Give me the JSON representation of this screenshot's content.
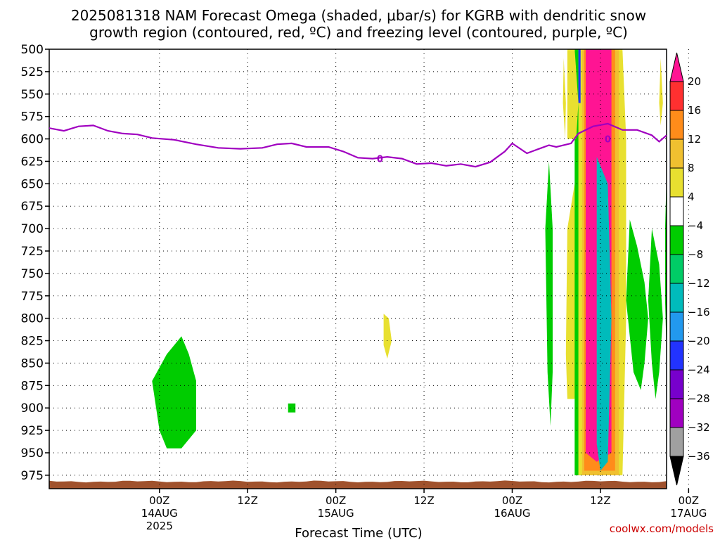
{
  "chart_data": {
    "type": "heatmap",
    "title_lines": [
      "2025081318 NAM Forecast Omega (shaded, μbar/s) for KGRB with dendritic snow",
      "growth region (contoured, red, ºC) and freezing level (contoured, purple, ºC)"
    ],
    "xlabel": "Forecast Time (UTC)",
    "credit": "coolwx.com/models",
    "x_hours_range": [
      -15,
      69
    ],
    "y_pressure_range": [
      500,
      990
    ],
    "y_ticks": [
      500,
      525,
      550,
      575,
      600,
      625,
      650,
      675,
      700,
      725,
      750,
      775,
      800,
      825,
      850,
      875,
      900,
      925,
      950,
      975
    ],
    "x_ticks": [
      {
        "hour": 0,
        "label": "00Z",
        "sub1": "14AUG",
        "sub2": "2025"
      },
      {
        "hour": 12,
        "label": "12Z",
        "sub1": "",
        "sub2": ""
      },
      {
        "hour": 24,
        "label": "00Z",
        "sub1": "15AUG",
        "sub2": ""
      },
      {
        "hour": 36,
        "label": "12Z",
        "sub1": "",
        "sub2": ""
      },
      {
        "hour": 48,
        "label": "00Z",
        "sub1": "16AUG",
        "sub2": ""
      },
      {
        "hour": 60,
        "label": "12Z",
        "sub1": "",
        "sub2": ""
      },
      {
        "hour": 72,
        "label": "00Z",
        "sub1": "17AUG",
        "sub2": ""
      }
    ],
    "colorbar": {
      "labels": [
        "20",
        "16",
        "12",
        "8",
        "4",
        "−4",
        "−8",
        "−12",
        "−16",
        "−20",
        "−24",
        "−28",
        "−32",
        "−36"
      ],
      "colors": [
        "#ff1493",
        "#ff3030",
        "#ff8c1a",
        "#f0c030",
        "#e8e030",
        "#ffffff",
        "#00cc00",
        "#00cc66",
        "#00bbbb",
        "#2299ee",
        "#2233ff",
        "#7700cc",
        "#a000c0",
        "#a0a0a0",
        "#000000"
      ]
    },
    "colors": {
      "freezing_line": "#a000c0",
      "terrain": "#a0522d"
    },
    "freezing_level_label": "0",
    "freezing_level": [
      [
        -15,
        588
      ],
      [
        -13,
        591
      ],
      [
        -11,
        586
      ],
      [
        -9,
        585
      ],
      [
        -7,
        591
      ],
      [
        -5,
        594
      ],
      [
        -3,
        595
      ],
      [
        -1,
        599
      ],
      [
        2,
        601
      ],
      [
        5,
        606
      ],
      [
        8,
        610
      ],
      [
        11,
        611
      ],
      [
        14,
        610
      ],
      [
        16,
        606
      ],
      [
        18,
        605
      ],
      [
        20,
        609
      ],
      [
        23,
        609
      ],
      [
        25,
        614
      ],
      [
        27,
        621
      ],
      [
        29,
        622
      ],
      [
        31,
        620
      ],
      [
        33,
        622
      ],
      [
        35,
        628
      ],
      [
        37,
        627
      ],
      [
        39,
        630
      ],
      [
        41,
        628
      ],
      [
        43,
        631
      ],
      [
        45,
        626
      ],
      [
        47,
        614
      ],
      [
        48,
        605
      ],
      [
        50,
        616
      ],
      [
        51,
        613
      ],
      [
        52,
        610
      ],
      [
        53,
        607
      ],
      [
        54,
        609
      ],
      [
        56,
        605
      ],
      [
        57,
        594
      ],
      [
        59,
        586
      ],
      [
        61,
        583
      ],
      [
        63,
        590
      ],
      [
        65,
        590
      ],
      [
        67,
        596
      ],
      [
        68,
        603
      ],
      [
        69,
        596
      ]
    ],
    "omega_regions": [
      {
        "color": "#00cc00",
        "pts": [
          [
            3,
            820
          ],
          [
            4,
            840
          ],
          [
            5,
            870
          ],
          [
            5,
            925
          ],
          [
            3,
            945
          ],
          [
            1,
            945
          ],
          [
            0,
            925
          ],
          [
            -1,
            870
          ],
          [
            1,
            840
          ]
        ]
      },
      {
        "color": "#00cc00",
        "pts": [
          [
            17.5,
            895
          ],
          [
            18.5,
            895
          ],
          [
            18.5,
            905
          ],
          [
            17.5,
            905
          ]
        ]
      },
      {
        "color": "#e8e030",
        "pts": [
          [
            30.5,
            795
          ],
          [
            31.2,
            800
          ],
          [
            31.6,
            825
          ],
          [
            31,
            845
          ],
          [
            30.5,
            830
          ]
        ]
      },
      {
        "color": "#e8e030",
        "pts": [
          [
            55,
            510
          ],
          [
            55.3,
            560
          ],
          [
            55.2,
            600
          ],
          [
            54.9,
            560
          ]
        ]
      },
      {
        "color": "#00cc00",
        "pts": [
          [
            53,
            625
          ],
          [
            53.5,
            700
          ],
          [
            53.5,
            860
          ],
          [
            53.2,
            920
          ],
          [
            52.8,
            860
          ],
          [
            52.5,
            700
          ]
        ]
      },
      {
        "color": "#e8e030",
        "pts": [
          [
            56.5,
            650
          ],
          [
            57,
            700
          ],
          [
            57,
            840
          ],
          [
            56.5,
            890
          ],
          [
            55.5,
            890
          ],
          [
            55.3,
            840
          ],
          [
            55.5,
            700
          ]
        ]
      },
      {
        "color": "#00cc00",
        "pts": [
          [
            56.5,
            500
          ],
          [
            61,
            500
          ],
          [
            61,
            975
          ],
          [
            56.5,
            975
          ]
        ]
      },
      {
        "color": "#e8e030",
        "pts": [
          [
            57,
            500
          ],
          [
            63,
            500
          ],
          [
            63.5,
            600
          ],
          [
            63.5,
            800
          ],
          [
            63,
            975
          ],
          [
            57,
            975
          ]
        ]
      },
      {
        "color": "#f0c030",
        "pts": [
          [
            57.5,
            500
          ],
          [
            62.5,
            500
          ],
          [
            62.5,
            590
          ],
          [
            62.5,
            975
          ],
          [
            57.5,
            975
          ]
        ]
      },
      {
        "color": "#ff8c1a",
        "pts": [
          [
            57.8,
            500
          ],
          [
            62,
            500
          ],
          [
            62,
            800
          ],
          [
            62,
            970
          ],
          [
            57.8,
            970
          ]
        ]
      },
      {
        "color": "#ff1493",
        "pts": [
          [
            58,
            500
          ],
          [
            61.5,
            500
          ],
          [
            61.5,
            950
          ],
          [
            59.5,
            960
          ],
          [
            58,
            950
          ]
        ]
      },
      {
        "color": "#00bbbb",
        "pts": [
          [
            59.5,
            620
          ],
          [
            61,
            650
          ],
          [
            61.5,
            800
          ],
          [
            61,
            960
          ],
          [
            60,
            970
          ],
          [
            59.5,
            940
          ]
        ]
      },
      {
        "color": "#2233ff",
        "pts": [
          [
            57,
            500
          ],
          [
            57.3,
            500
          ],
          [
            57.3,
            560
          ],
          [
            57,
            560
          ]
        ]
      },
      {
        "color": "#e8e030",
        "pts": [
          [
            55.5,
            500
          ],
          [
            56.5,
            500
          ],
          [
            57,
            560
          ],
          [
            56.7,
            600
          ],
          [
            55.5,
            600
          ]
        ]
      },
      {
        "color": "#00cc00",
        "pts": [
          [
            64,
            690
          ],
          [
            65,
            720
          ],
          [
            66,
            760
          ],
          [
            66.5,
            800
          ],
          [
            66,
            850
          ],
          [
            65.5,
            880
          ],
          [
            64.5,
            860
          ],
          [
            64,
            820
          ],
          [
            63.5,
            780
          ]
        ]
      },
      {
        "color": "#00cc00",
        "pts": [
          [
            67,
            700
          ],
          [
            68,
            740
          ],
          [
            68.5,
            800
          ],
          [
            68,
            860
          ],
          [
            67.5,
            890
          ],
          [
            67,
            850
          ],
          [
            66.5,
            780
          ]
        ]
      },
      {
        "color": "#e8e030",
        "pts": [
          [
            68.2,
            510
          ],
          [
            68.5,
            560
          ],
          [
            68.2,
            585
          ],
          [
            68,
            560
          ]
        ]
      },
      {
        "color": "#00cc00",
        "pts": [
          [
            69,
            640
          ],
          [
            69,
            840
          ],
          [
            68.8,
            780
          ],
          [
            68.8,
            700
          ]
        ]
      }
    ]
  }
}
